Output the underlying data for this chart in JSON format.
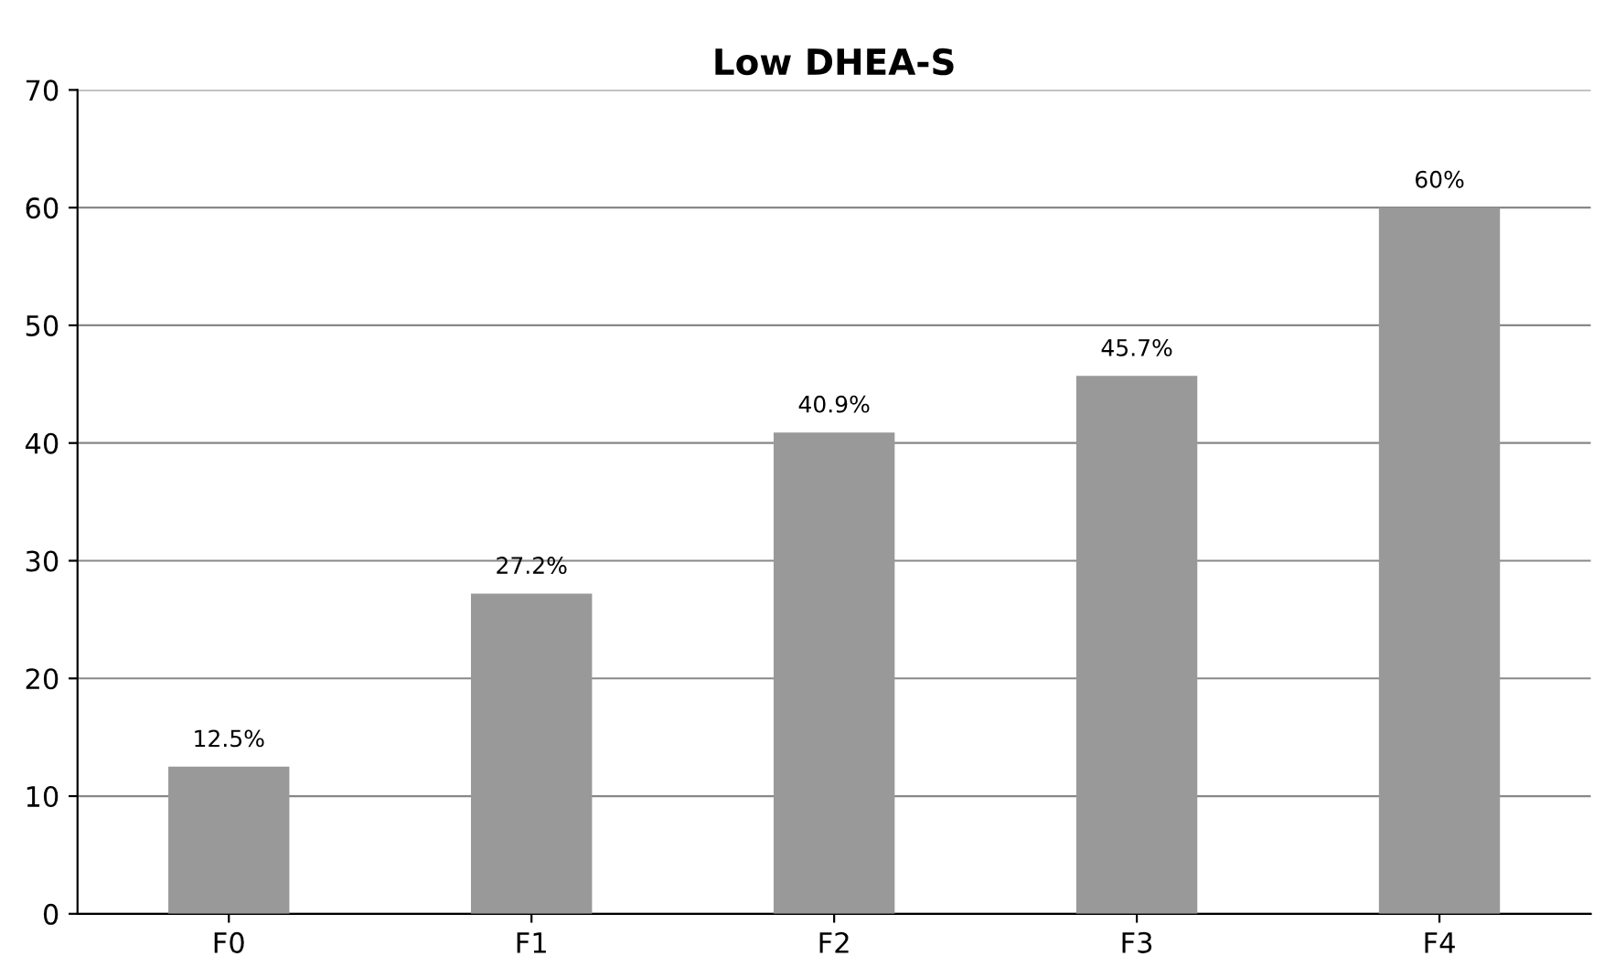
{
  "chart_data": {
    "type": "bar",
    "title": "Low DHEA-S",
    "categories": [
      "F0",
      "F1",
      "F2",
      "F3",
      "F4"
    ],
    "values": [
      12.5,
      27.2,
      40.9,
      45.7,
      60
    ],
    "value_labels": [
      "12.5%",
      "27.2%",
      "40.9%",
      "45.7%",
      "60%"
    ],
    "color": "#999999",
    "ylim": [
      0,
      70
    ],
    "yticks": [
      0,
      10,
      20,
      30,
      40,
      50,
      60,
      70
    ],
    "grid": "y"
  }
}
